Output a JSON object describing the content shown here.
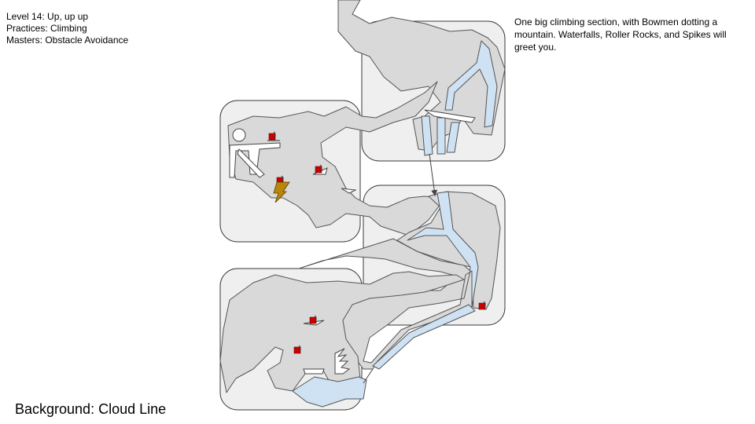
{
  "level": {
    "title": "Level 14: Up, up up",
    "practices": "Practices: Climbing",
    "masters": "Masters: Obstacle Avoidance"
  },
  "description": "One big climbing section, with Bowmen dotting a mountain. Waterfalls, Roller Rocks, and Spikes will greet you.",
  "background": "Background: Cloud Line",
  "colors": {
    "panel": "#efefef",
    "rock": "#d9d9d9",
    "water": "#cfe2f3",
    "bowman": "#cc0000",
    "lightning": "#b8860b"
  },
  "icons": [
    "bowman-icon",
    "lightning-bolt-icon",
    "roller-rock-icon",
    "spike-icon",
    "arrow-icon"
  ]
}
